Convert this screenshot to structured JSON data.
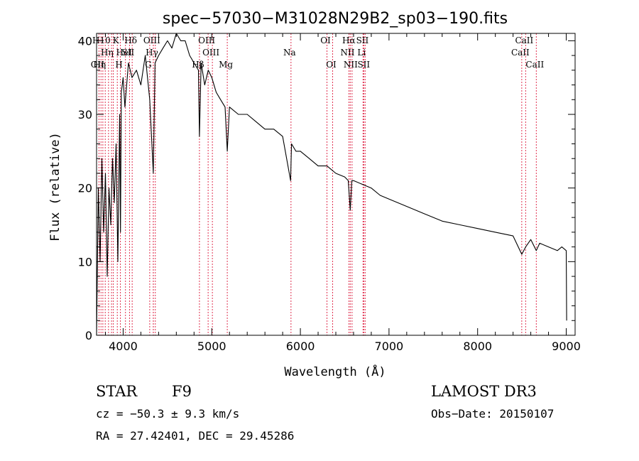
{
  "chart_data": {
    "type": "line",
    "title": "spec−57030−M31028N29B2_sp03−190.fits",
    "xlabel": "Wavelength (Å)",
    "ylabel": "Flux (relative)",
    "xlim": [
      3700,
      9100
    ],
    "ylim": [
      0,
      41
    ],
    "xticks": [
      4000,
      5000,
      6000,
      7000,
      8000,
      9000
    ],
    "xtick_labels": [
      "4000",
      "5000",
      "6000",
      "7000",
      "8000",
      "9000"
    ],
    "yticks": [
      0,
      10,
      20,
      30,
      40
    ],
    "ytick_labels": [
      "0",
      "10",
      "20",
      "30",
      "40"
    ],
    "series": [
      {
        "name": "flux",
        "x": [
          3700,
          3720,
          3740,
          3760,
          3780,
          3800,
          3820,
          3840,
          3860,
          3880,
          3900,
          3920,
          3940,
          3960,
          3970,
          3980,
          4000,
          4020,
          4060,
          4100,
          4150,
          4200,
          4250,
          4300,
          4340,
          4360,
          4400,
          4450,
          4500,
          4550,
          4600,
          4650,
          4700,
          4750,
          4800,
          4850,
          4861,
          4880,
          4920,
          4960,
          5000,
          5050,
          5100,
          5150,
          5175,
          5200,
          5300,
          5400,
          5500,
          5600,
          5700,
          5800,
          5890,
          5900,
          5950,
          6000,
          6100,
          6200,
          6300,
          6400,
          6500,
          6540,
          6563,
          6580,
          6600,
          6700,
          6800,
          6900,
          7000,
          7200,
          7400,
          7600,
          7800,
          8000,
          8200,
          8400,
          8498,
          8542,
          8600,
          8662,
          8700,
          8800,
          8900,
          8950,
          9000,
          9005
        ],
        "y": [
          0,
          20,
          10,
          24,
          14,
          22,
          8,
          20,
          15,
          24,
          18,
          26,
          10,
          30,
          14,
          33,
          35,
          31,
          37,
          35,
          36,
          34,
          38,
          32,
          22,
          37,
          38,
          39,
          40,
          39,
          41,
          40,
          40,
          38,
          37,
          36,
          27,
          37,
          34,
          36,
          35,
          33,
          32,
          31,
          25,
          31,
          30,
          30,
          29,
          28,
          28,
          27,
          21,
          26,
          25,
          25,
          24,
          23,
          23,
          22,
          21.5,
          21,
          17,
          21,
          21,
          20.5,
          20,
          19,
          18.5,
          17.5,
          16.5,
          15.5,
          15,
          14.5,
          14,
          13.5,
          11,
          12,
          13,
          11.5,
          12.5,
          12,
          11.5,
          12,
          11.5,
          2
        ]
      }
    ],
    "line_marks": [
      {
        "x": 3727,
        "label": "OII",
        "row": 3
      },
      {
        "x": 3750,
        "label": "Hη",
        "row": 3
      },
      {
        "x": 3771,
        "label": "H10",
        "row": 1
      },
      {
        "x": 3798,
        "label": "",
        "row": 0
      },
      {
        "x": 3835,
        "label": "Hη",
        "row": 2
      },
      {
        "x": 3869,
        "label": "",
        "row": 0
      },
      {
        "x": 3889,
        "label": "",
        "row": 0
      },
      {
        "x": 3934,
        "label": "K",
        "row": 1
      },
      {
        "x": 3969,
        "label": "H",
        "row": 3
      },
      {
        "x": 4026,
        "label": "HeI",
        "row": 2
      },
      {
        "x": 4072,
        "label": "SII",
        "row": 2
      },
      {
        "x": 4102,
        "label": "Hδ",
        "row": 1
      },
      {
        "x": 4300,
        "label": "G",
        "row": 3
      },
      {
        "x": 4340,
        "label": "OIII",
        "row": 1
      },
      {
        "x": 4341,
        "label": "Hγ",
        "row": 2
      },
      {
        "x": 4363,
        "label": "",
        "row": 0
      },
      {
        "x": 4861,
        "label": "Hβ",
        "row": 3
      },
      {
        "x": 4959,
        "label": "OIII",
        "row": 1
      },
      {
        "x": 5007,
        "label": "OIII",
        "row": 2
      },
      {
        "x": 5175,
        "label": "Mg",
        "row": 3
      },
      {
        "x": 5894,
        "label": "Na",
        "row": 2
      },
      {
        "x": 6300,
        "label": "OI",
        "row": 1
      },
      {
        "x": 6364,
        "label": "OI",
        "row": 3
      },
      {
        "x": 6548,
        "label": "NII",
        "row": 2
      },
      {
        "x": 6563,
        "label": "Hα",
        "row": 1
      },
      {
        "x": 6583,
        "label": "NII",
        "row": 3
      },
      {
        "x": 6707,
        "label": "Li",
        "row": 2
      },
      {
        "x": 6716,
        "label": "SII",
        "row": 1
      },
      {
        "x": 6731,
        "label": "SII",
        "row": 3
      },
      {
        "x": 8498,
        "label": "CaII",
        "row": 2
      },
      {
        "x": 8542,
        "label": "CaII",
        "row": 1
      },
      {
        "x": 8662,
        "label": "CaII",
        "row": 3
      }
    ]
  },
  "info": {
    "object_class": "STAR",
    "subclass": "F9",
    "survey": "LAMOST DR3",
    "redshift_text": "cz = −50.3 ± 9.3 km/s",
    "obs_date": "Obs−Date: 20150107",
    "coords": "RA =  27.42401, DEC =  29.45286"
  }
}
